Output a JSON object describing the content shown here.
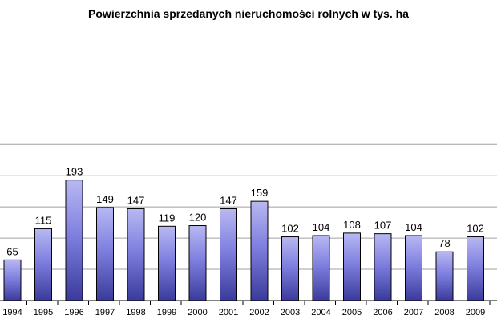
{
  "chart_data": {
    "type": "bar",
    "title": "Powierzchnia sprzedanych nieruchomości rolnych w tys. ha",
    "xlabel": "",
    "ylabel": "",
    "categories": [
      "1994",
      "1995",
      "1996",
      "1997",
      "1998",
      "1999",
      "2000",
      "2001",
      "2002",
      "2003",
      "2004",
      "2005",
      "2006",
      "2007",
      "2008",
      "2009"
    ],
    "values": [
      65,
      115,
      193,
      149,
      147,
      119,
      120,
      147,
      159,
      102,
      104,
      108,
      107,
      104,
      78,
      102
    ],
    "ylim": [
      0,
      250
    ],
    "grid": true,
    "legend": "none",
    "colors": {
      "bar_top": "#b8b8f2",
      "bar_mid": "#8080e0",
      "bar_bottom": "#3a3a9a",
      "bar_border": "#000000",
      "grid": "#a0a0a0"
    }
  }
}
